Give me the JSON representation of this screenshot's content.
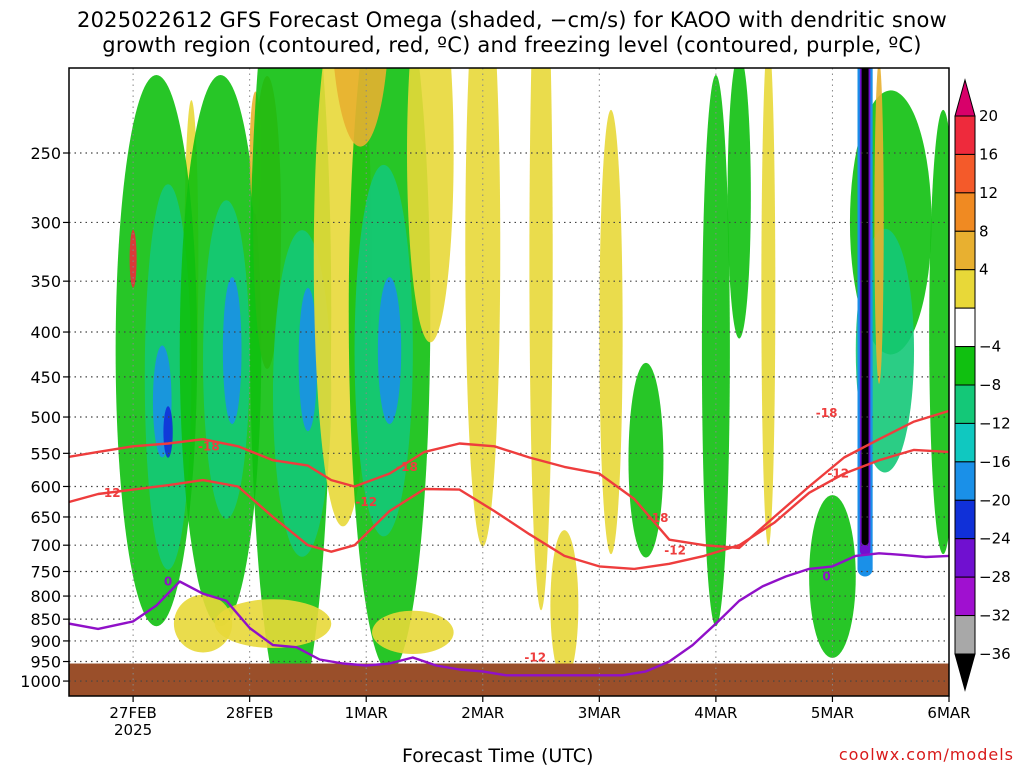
{
  "chart_data": {
    "type": "heatmap",
    "title_line1": "2025022612 GFS Forecast Omega (shaded, −cm/s) for KAOO with dendritic snow",
    "title_line2": "growth region (contoured, red, ºC) and freezing level (contoured, purple, ºC)",
    "xlabel": "Forecast Time (UTC)",
    "ylabel": "",
    "credit": "coolwx.com/models",
    "x_ticks": [
      {
        "label": "27FEB",
        "sub": "2025"
      },
      {
        "label": "28FEB",
        "sub": ""
      },
      {
        "label": "1MAR",
        "sub": ""
      },
      {
        "label": "2MAR",
        "sub": ""
      },
      {
        "label": "3MAR",
        "sub": ""
      },
      {
        "label": "4MAR",
        "sub": ""
      },
      {
        "label": "5MAR",
        "sub": ""
      },
      {
        "label": "6MAR",
        "sub": ""
      }
    ],
    "y_ticks": [
      "250",
      "300",
      "350",
      "400",
      "450",
      "500",
      "550",
      "600",
      "650",
      "700",
      "750",
      "800",
      "850",
      "900",
      "950",
      "1000"
    ],
    "y_values": [
      250,
      300,
      350,
      400,
      450,
      500,
      550,
      600,
      650,
      700,
      750,
      800,
      850,
      900,
      950,
      1000
    ],
    "y_range": [
      200,
      1040
    ],
    "x_range_days": [
      -0.55,
      7.0
    ],
    "grid": true,
    "legend_placement": "right",
    "colorbar_labels": [
      "20",
      "16",
      "12",
      "8",
      "4",
      "−4",
      "−8",
      "−12",
      "−16",
      "−20",
      "−24",
      "−28",
      "−32",
      "−36"
    ],
    "colorbar_colors": [
      "#d8006a",
      "#ee2a3c",
      "#f45a2a",
      "#f08a22",
      "#e8b030",
      "#e8d838",
      "#ffffff",
      "#10c010",
      "#14c878",
      "#10c8c0",
      "#1a90e8",
      "#1030d8",
      "#7010d0",
      "#a010d0",
      "#a8a8a8",
      "#000000"
    ],
    "contour_labels": {
      "dgz_minus18": "-18",
      "dgz_minus12": "-12",
      "freezing_zero": "0"
    },
    "dgz_colors": {
      "dgz": "#ee3d3d",
      "freezing": "#9010c8",
      "terrain": "#9a4f2a"
    },
    "series": [
      {
        "key": "dgz_top_minus18",
        "kind": "dgz",
        "x": [
          -0.55,
          -0.3,
          0,
          0.3,
          0.6,
          0.9,
          1.2,
          1.5,
          1.7,
          1.9,
          2.2,
          2.5,
          2.8,
          3.1,
          3.4,
          3.7,
          4.0,
          4.3,
          4.6,
          4.9,
          5.2,
          5.5,
          5.8,
          6.1,
          6.4,
          6.7,
          7.0
        ],
        "y": [
          555,
          548,
          540,
          536,
          530,
          540,
          560,
          568,
          590,
          600,
          580,
          548,
          536,
          540,
          556,
          570,
          580,
          620,
          690,
          700,
          705,
          650,
          600,
          556,
          530,
          506,
          492
        ]
      },
      {
        "key": "dgz_bottom_minus12",
        "kind": "dgz",
        "x": [
          -0.55,
          -0.3,
          0,
          0.3,
          0.6,
          0.9,
          1.2,
          1.5,
          1.7,
          1.9,
          2.2,
          2.5,
          2.8,
          3.1,
          3.4,
          3.7,
          4.0,
          4.3,
          4.6,
          4.9,
          5.2,
          5.5,
          5.8,
          6.1,
          6.4,
          6.7,
          7.0
        ],
        "y": [
          625,
          612,
          605,
          598,
          590,
          600,
          650,
          700,
          712,
          700,
          640,
          604,
          605,
          640,
          680,
          720,
          740,
          745,
          735,
          720,
          700,
          660,
          610,
          580,
          560,
          545,
          548
        ]
      },
      {
        "key": "freezing_level",
        "kind": "freezing",
        "x": [
          -0.55,
          -0.3,
          0,
          0.2,
          0.4,
          0.6,
          0.8,
          1.0,
          1.2,
          1.4,
          1.6,
          1.8,
          2.0,
          2.2,
          2.4,
          2.6,
          2.8,
          3.0,
          3.2,
          3.4,
          3.6,
          3.8,
          4.0,
          4.2,
          4.4,
          4.6,
          4.8,
          5.0,
          5.2,
          5.4,
          5.6,
          5.8,
          6.0,
          6.2,
          6.4,
          6.6,
          6.8,
          7.0
        ],
        "y": [
          860,
          872,
          855,
          820,
          770,
          795,
          810,
          870,
          910,
          915,
          945,
          955,
          960,
          955,
          940,
          960,
          970,
          975,
          985,
          985,
          985,
          985,
          985,
          985,
          975,
          950,
          910,
          860,
          810,
          780,
          760,
          745,
          740,
          720,
          715,
          718,
          722,
          720
        ]
      }
    ]
  }
}
